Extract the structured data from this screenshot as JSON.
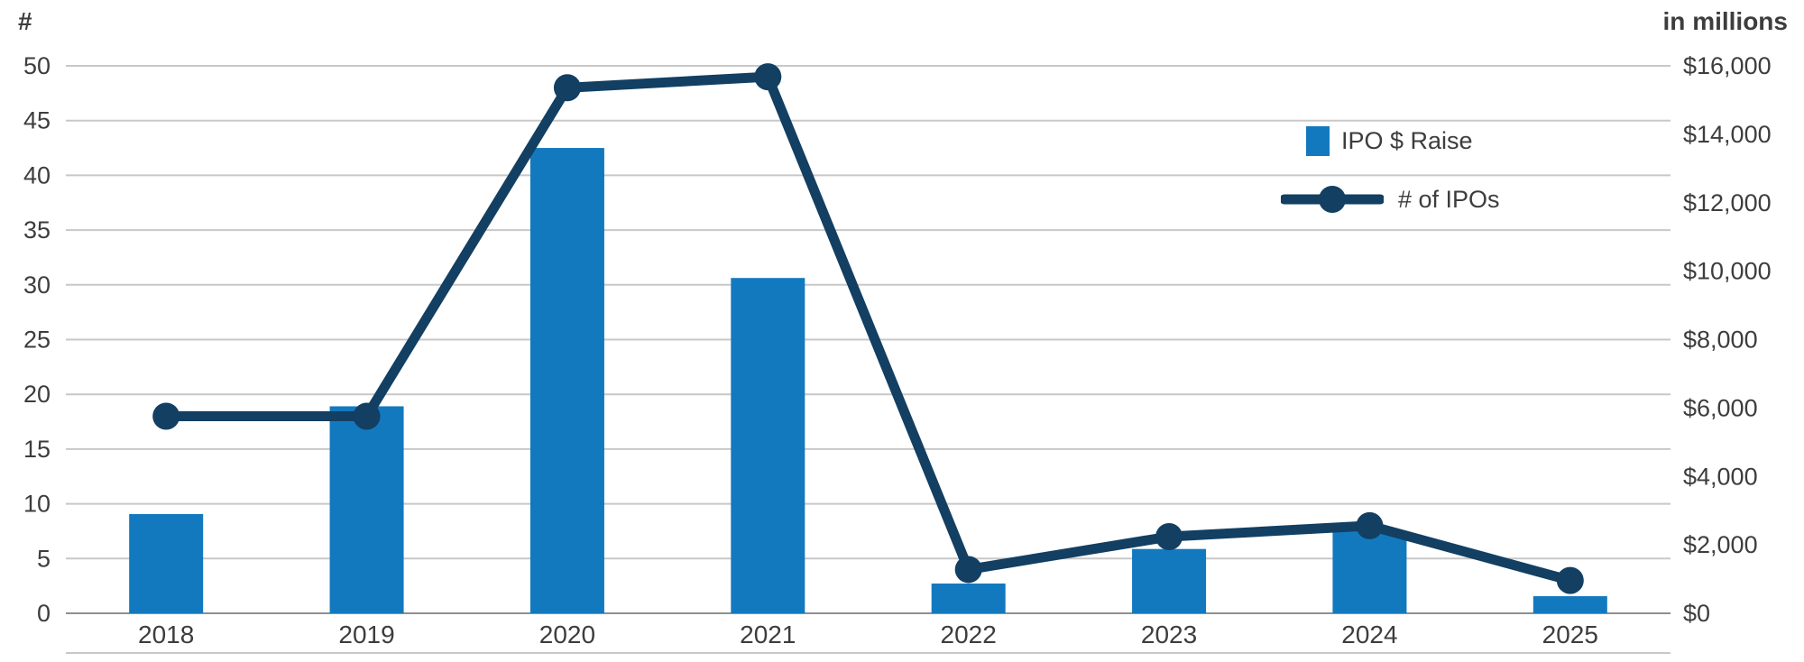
{
  "chart_data": {
    "type": "bar",
    "title": "",
    "categories": [
      "2018",
      "2019",
      "2020",
      "2021",
      "2022",
      "2023",
      "2024",
      "2025"
    ],
    "series": [
      {
        "name": "IPO $ Raise",
        "type": "bar",
        "axis": "right",
        "units": "USD millions",
        "color": "#1379bf",
        "values": [
          2900,
          6050,
          13600,
          9800,
          870,
          1880,
          2400,
          500
        ]
      },
      {
        "name": "# of IPOs",
        "type": "line",
        "axis": "left",
        "units": "count",
        "color": "#123f62",
        "values": [
          18,
          18,
          48,
          49,
          4,
          7,
          8,
          3
        ]
      }
    ],
    "left_axis": {
      "title": "#",
      "min": 0,
      "max": 50,
      "step": 5,
      "ticks": [
        "0",
        "5",
        "10",
        "15",
        "20",
        "25",
        "30",
        "35",
        "40",
        "45",
        "50"
      ]
    },
    "right_axis": {
      "title": "in millions",
      "min": 0,
      "max": 16000,
      "step": 2000,
      "ticks": [
        "$0",
        "$2,000",
        "$4,000",
        "$6,000",
        "$8,000",
        "$10,000",
        "$12,000",
        "$14,000",
        "$16,000"
      ]
    },
    "legend": {
      "position": "inside-top-right",
      "entries": [
        "IPO $ Raise",
        "# of IPOs"
      ]
    },
    "grid": true,
    "colors": {
      "grid": "#c8c8c8",
      "axis_line": "#8f8f8f",
      "text": "#3d3d3d",
      "background": "#ffffff"
    }
  }
}
